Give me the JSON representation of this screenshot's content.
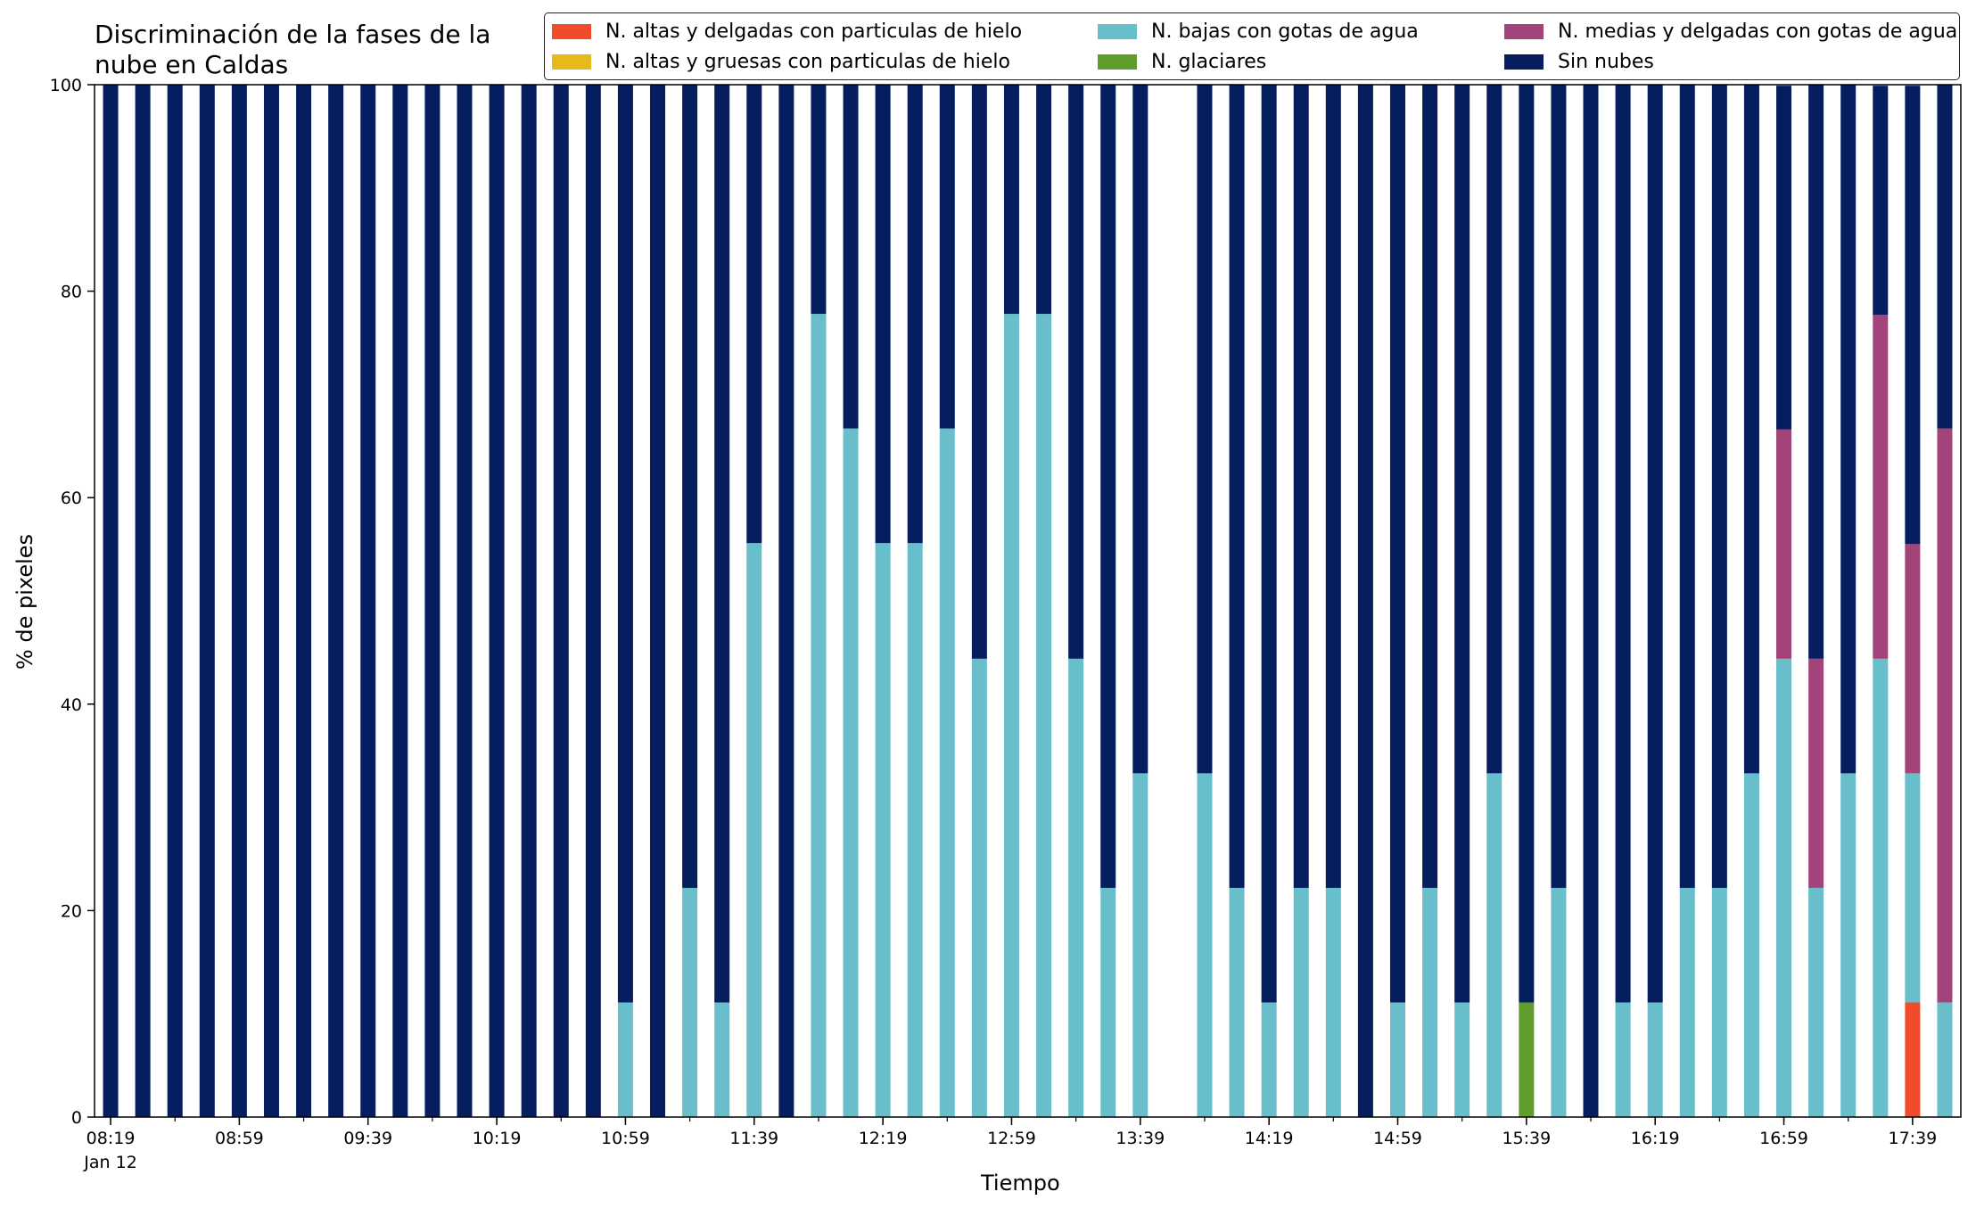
{
  "chart_data": {
    "type": "bar",
    "stacked": true,
    "title": "Discriminación de la fases de la\nnube en Caldas",
    "xlabel": "Tiempo",
    "ylabel": "% de pixeles",
    "ylim": [
      0,
      100
    ],
    "yticks": [
      0,
      20,
      40,
      60,
      80,
      100
    ],
    "grid": false,
    "legend_position": "top-right",
    "x_tick_labels": [
      "08:19",
      "08:59",
      "09:39",
      "10:19",
      "10:59",
      "11:39",
      "12:19",
      "12:59",
      "13:39",
      "14:19",
      "14:59",
      "15:39",
      "16:19",
      "16:59",
      "17:39"
    ],
    "x_date_label": "Jan 12",
    "categories": [
      "08:19",
      "08:29",
      "08:39",
      "08:49",
      "08:59",
      "09:09",
      "09:19",
      "09:29",
      "09:39",
      "09:49",
      "09:59",
      "10:09",
      "10:19",
      "10:29",
      "10:39",
      "10:49",
      "10:59",
      "11:09",
      "11:19",
      "11:29",
      "11:39",
      "11:49",
      "11:59",
      "12:09",
      "12:19",
      "12:29",
      "12:39",
      "12:49",
      "12:59",
      "13:09",
      "13:19",
      "13:29",
      "13:39",
      "13:49",
      "13:59",
      "14:09",
      "14:19",
      "14:29",
      "14:39",
      "14:49",
      "14:59",
      "15:09",
      "15:19",
      "15:29",
      "15:39",
      "15:49",
      "15:59",
      "16:09",
      "16:19",
      "16:29",
      "16:39",
      "16:49",
      "16:59",
      "17:09",
      "17:19",
      "17:29",
      "17:39",
      "17:49"
    ],
    "series": [
      {
        "name": "N. altas y delgadas con particulas de hielo",
        "color": "#f04b2a",
        "values": [
          0,
          0,
          0,
          0,
          0,
          0,
          0,
          0,
          0,
          0,
          0,
          0,
          0,
          0,
          0,
          0,
          0,
          0,
          0,
          0,
          0,
          0,
          0,
          0,
          0,
          0,
          0,
          0,
          0,
          0,
          0,
          0,
          0,
          null,
          0,
          0,
          0,
          0,
          0,
          0,
          0,
          0,
          0,
          0,
          0,
          0,
          0,
          0,
          0,
          0,
          0,
          0,
          0,
          0,
          0,
          0,
          11.1,
          0
        ]
      },
      {
        "name": "N. altas y gruesas con particulas de hielo",
        "color": "#e8b91a",
        "values": [
          0,
          0,
          0,
          0,
          0,
          0,
          0,
          0,
          0,
          0,
          0,
          0,
          0,
          0,
          0,
          0,
          0,
          0,
          0,
          0,
          0,
          0,
          0,
          0,
          0,
          0,
          0,
          0,
          0,
          0,
          0,
          0,
          0,
          null,
          0,
          0,
          0,
          0,
          0,
          0,
          0,
          0,
          0,
          0,
          0,
          0,
          0,
          0,
          0,
          0,
          0,
          0,
          0,
          0,
          0,
          0,
          0,
          0
        ]
      },
      {
        "name": "N. bajas con gotas de agua",
        "color": "#68bfcb",
        "values": [
          0,
          0,
          0,
          0,
          0,
          0,
          0,
          0,
          0,
          0,
          0,
          0,
          0,
          0,
          0,
          0,
          11.1,
          0,
          22.2,
          11.1,
          55.6,
          0,
          77.8,
          66.7,
          55.6,
          55.6,
          66.7,
          44.4,
          77.8,
          77.8,
          44.4,
          22.2,
          33.3,
          null,
          33.3,
          22.2,
          11.1,
          22.2,
          22.2,
          0,
          11.1,
          22.2,
          11.1,
          33.3,
          0,
          22.2,
          0,
          11.1,
          11.1,
          22.2,
          22.2,
          33.3,
          44.4,
          22.2,
          33.3,
          44.4,
          22.2,
          11.1
        ]
      },
      {
        "name": "N. glaciares",
        "color": "#5f9e2d",
        "values": [
          0,
          0,
          0,
          0,
          0,
          0,
          0,
          0,
          0,
          0,
          0,
          0,
          0,
          0,
          0,
          0,
          0,
          0,
          0,
          0,
          0,
          0,
          0,
          0,
          0,
          0,
          0,
          0,
          0,
          0,
          0,
          0,
          0,
          null,
          0,
          0,
          0,
          0,
          0,
          0,
          0,
          0,
          0,
          0,
          11.1,
          0,
          0,
          0,
          0,
          0,
          0,
          0,
          0,
          0,
          0,
          0,
          0,
          0
        ]
      },
      {
        "name": "N. medias y delgadas con gotas de agua",
        "color": "#a2437a",
        "values": [
          0,
          0,
          0,
          0,
          0,
          0,
          0,
          0,
          0,
          0,
          0,
          0,
          0,
          0,
          0,
          0,
          0,
          0,
          0,
          0,
          0,
          0,
          0,
          0,
          0,
          0,
          0,
          0,
          0,
          0,
          0,
          0,
          0,
          null,
          0,
          0,
          0,
          0,
          0,
          0,
          0,
          0,
          0,
          0,
          0,
          0,
          0,
          0,
          0,
          0,
          0,
          0,
          22.2,
          22.2,
          0,
          33.3,
          22.2,
          55.6
        ]
      },
      {
        "name": "Sin nubes",
        "color": "#041e5f",
        "values": [
          100,
          100,
          100,
          100,
          100,
          100,
          100,
          100,
          100,
          100,
          100,
          100,
          100,
          100,
          100,
          100,
          88.9,
          100,
          77.8,
          88.9,
          44.4,
          100,
          22.2,
          33.3,
          44.4,
          44.4,
          33.3,
          55.6,
          22.2,
          22.2,
          55.6,
          77.8,
          66.7,
          null,
          66.7,
          77.8,
          88.9,
          77.8,
          77.8,
          100,
          88.9,
          77.8,
          88.9,
          66.7,
          88.9,
          77.8,
          100,
          88.9,
          88.9,
          77.8,
          77.8,
          66.7,
          33.3,
          55.6,
          66.7,
          22.2,
          44.4,
          33.3
        ]
      }
    ]
  }
}
